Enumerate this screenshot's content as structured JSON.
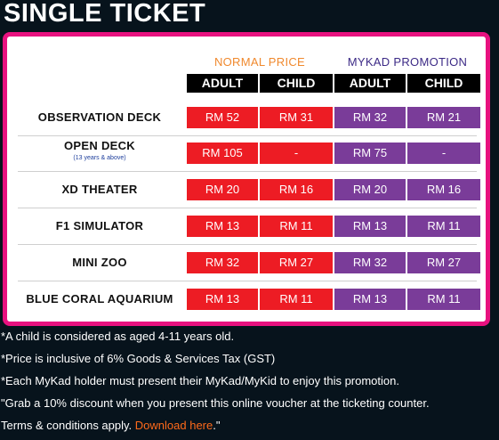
{
  "title": "SINGLE TICKET",
  "group_headers": {
    "normal": "NORMAL PRICE",
    "mykad": "MYKAD PROMOTION"
  },
  "column_headers": [
    "ADULT",
    "CHILD",
    "ADULT",
    "CHILD"
  ],
  "rows": [
    {
      "name": "OBSERVATION DECK",
      "sub": "",
      "prices": [
        "RM 52",
        "RM 31",
        "RM 32",
        "RM 21"
      ]
    },
    {
      "name": "OPEN DECK",
      "sub": "(13 years & above)",
      "prices": [
        "RM 105",
        "-",
        "RM 75",
        "-"
      ]
    },
    {
      "name": "XD THEATER",
      "sub": "",
      "prices": [
        "RM 20",
        "RM 16",
        "RM 20",
        "RM 16"
      ]
    },
    {
      "name": "F1 SIMULATOR",
      "sub": "",
      "prices": [
        "RM 13",
        "RM 11",
        "RM 13",
        "RM 11"
      ]
    },
    {
      "name": "MINI ZOO",
      "sub": "",
      "prices": [
        "RM 32",
        "RM 27",
        "RM 32",
        "RM 27"
      ]
    },
    {
      "name": "BLUE CORAL AQUARIUM",
      "sub": "",
      "prices": [
        "RM 13",
        "RM 11",
        "RM 13",
        "RM 11"
      ]
    }
  ],
  "notes": {
    "child": "*A child is considered as aged 4-11 years old.",
    "gst": "*Price is inclusive of 6% Goods & Services Tax (GST)",
    "mykad": "*Each MyKad holder must present their MyKad/MyKid to enjoy this promotion.",
    "discount": "\"Grab a 10% discount when you present this online voucher at the ticketing counter.",
    "terms_prefix": "Terms & conditions apply. ",
    "download_link": "Download here",
    "terms_suffix": ".\""
  },
  "colors": {
    "border": "#e8117f",
    "normal_cell": "#ed1c24",
    "mykad_cell": "#7a3c99",
    "normal_header": "#f0892e",
    "mykad_header": "#3c2a86",
    "link": "#ff6a1a"
  }
}
